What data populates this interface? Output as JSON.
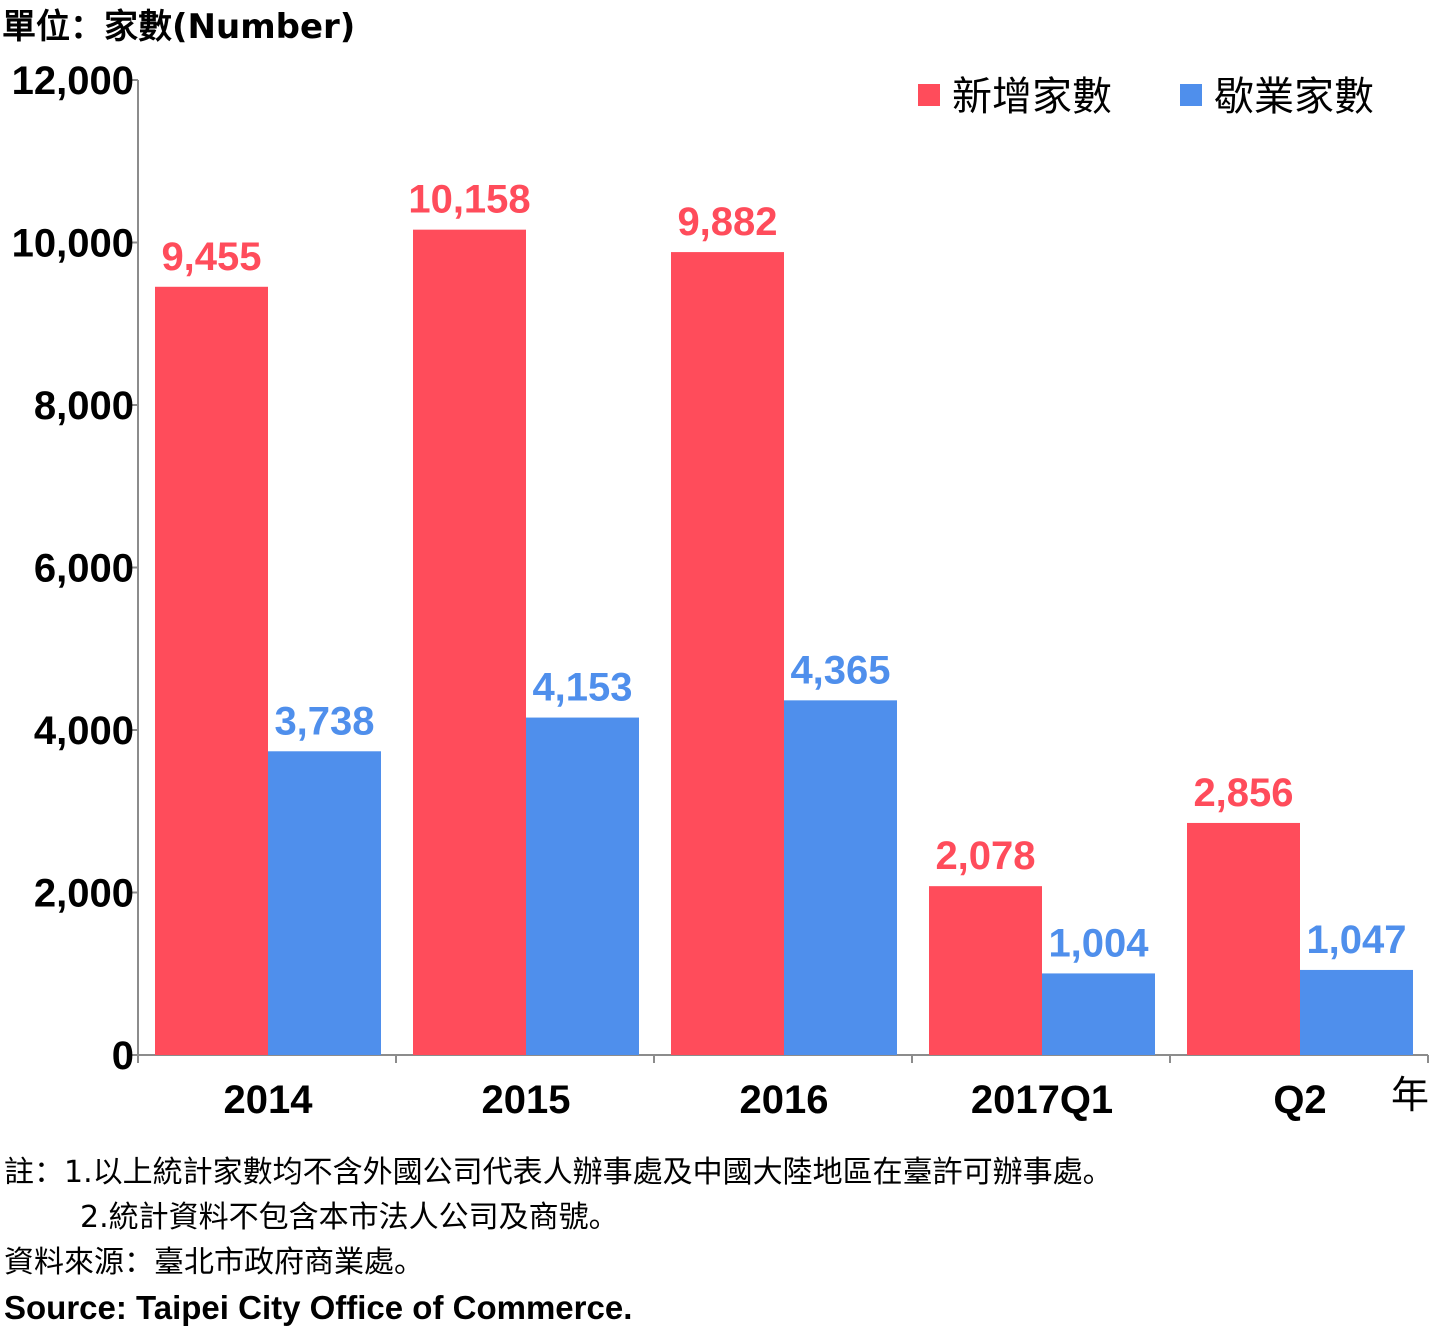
{
  "chart_data": {
    "type": "bar",
    "unit_label": "單位：家數(Number)",
    "x_unit": "年",
    "categories": [
      "2014",
      "2015",
      "2016",
      "2017Q1",
      "Q2"
    ],
    "series": [
      {
        "name": "新增家數",
        "color": "#ff4c5b",
        "values": [
          9455,
          10158,
          9882,
          2078,
          2856
        ]
      },
      {
        "name": "歇業家數",
        "color": "#4f8fec",
        "values": [
          3738,
          4153,
          4365,
          1004,
          1047
        ]
      }
    ],
    "ylim": [
      0,
      12000
    ],
    "yticks": [
      0,
      2000,
      4000,
      6000,
      8000,
      10000,
      12000
    ],
    "ytick_labels": [
      "0",
      "2,000",
      "4,000",
      "6,000",
      "8,000",
      "10,000",
      "12,000"
    ],
    "value_labels": [
      [
        "9,455",
        "10,158",
        "9,882",
        "2,078",
        "2,856"
      ],
      [
        "3,738",
        "4,153",
        "4,365",
        "1,004",
        "1,047"
      ]
    ],
    "grid": false,
    "legend_position": "top-right"
  },
  "notes": {
    "line1": "註：1.以上統計家數均不含外國公司代表人辦事處及中國大陸地區在臺許可辦事處。",
    "line2": "2.統計資料不包含本市法人公司及商號。",
    "source_zh": "資料來源：臺北市政府商業處。",
    "source_en": "Source: Taipei City Office of Commerce."
  }
}
